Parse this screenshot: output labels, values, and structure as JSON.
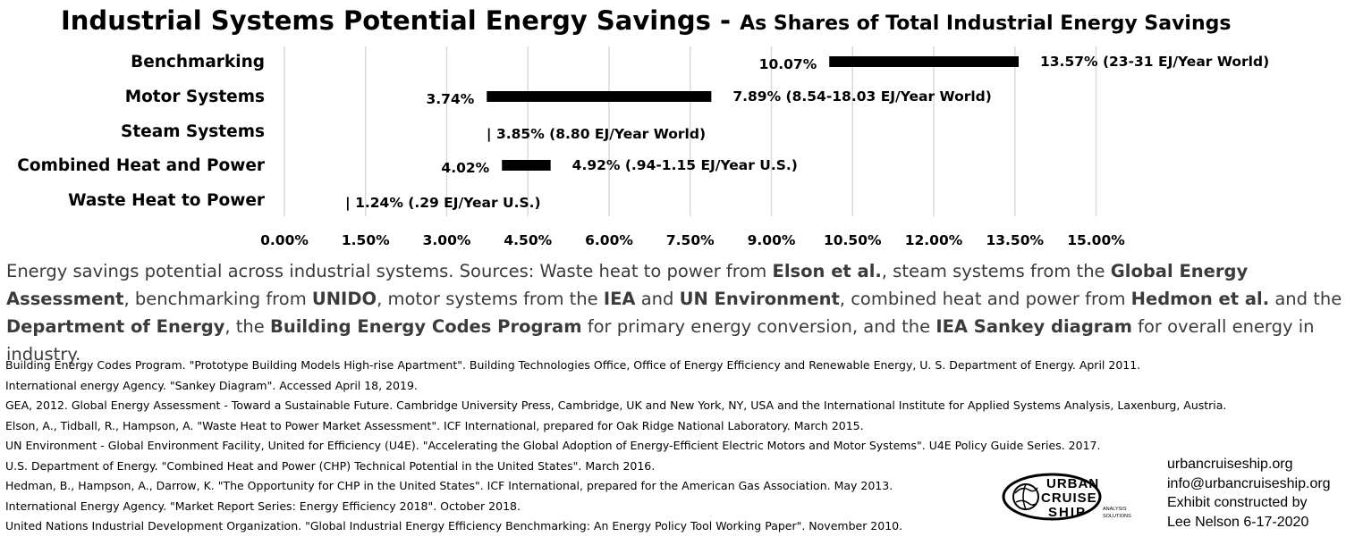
{
  "chart_data": {
    "type": "bar",
    "title": "Industrial Systems Potential Energy Savings -",
    "subtitle": "As Shares of Total Industrial Energy Savings",
    "xlim": [
      0,
      15
    ],
    "x_ticks": [
      "0.00%",
      "1.50%",
      "3.00%",
      "4.50%",
      "6.00%",
      "7.50%",
      "9.00%",
      "10.50%",
      "12.00%",
      "13.50%",
      "15.00%"
    ],
    "x_tick_values": [
      0,
      1.5,
      3,
      4.5,
      6,
      7.5,
      9,
      10.5,
      12,
      13.5,
      15
    ],
    "grid": "vertical",
    "series": [
      {
        "category": "Benchmarking",
        "low": 10.07,
        "high": 13.57,
        "low_label": "10.07%",
        "high_label": "13.57% (23-31 EJ/Year World)"
      },
      {
        "category": "Motor Systems",
        "low": 3.74,
        "high": 7.89,
        "low_label": "3.74%",
        "high_label": "7.89% (8.54-18.03 EJ/Year World)"
      },
      {
        "category": "Steam Systems",
        "low": 3.85,
        "high": 3.85,
        "low_label": "",
        "high_label": "| 3.85% (8.80 EJ/Year World)"
      },
      {
        "category": "Combined Heat and Power",
        "low": 4.02,
        "high": 4.92,
        "low_label": "4.02%",
        "high_label": "4.92% (.94-1.15 EJ/Year U.S.)"
      },
      {
        "category": "Waste Heat to Power",
        "low": 1.24,
        "high": 1.24,
        "low_label": "",
        "high_label": "| 1.24% (.29 EJ/Year U.S.)"
      }
    ]
  },
  "caption": {
    "segments": [
      {
        "text": "Energy savings potential across industrial systems. Sources: Waste heat to power from ",
        "bold": false
      },
      {
        "text": "Elson et al.",
        "bold": true
      },
      {
        "text": ", steam systems from the ",
        "bold": false
      },
      {
        "text": "Global Energy Assessment",
        "bold": true
      },
      {
        "text": ", benchmarking from ",
        "bold": false
      },
      {
        "text": "UNIDO",
        "bold": true
      },
      {
        "text": ", motor systems from the ",
        "bold": false
      },
      {
        "text": "IEA",
        "bold": true
      },
      {
        "text": " and ",
        "bold": false
      },
      {
        "text": "UN Environment",
        "bold": true
      },
      {
        "text": ", combined heat and power from ",
        "bold": false
      },
      {
        "text": "Hedmon et al.",
        "bold": true
      },
      {
        "text": " and the ",
        "bold": false
      },
      {
        "text": "Department of Energy",
        "bold": true
      },
      {
        "text": ", the ",
        "bold": false
      },
      {
        "text": "Building Energy Codes Program",
        "bold": true
      },
      {
        "text": " for primary energy conversion, and the ",
        "bold": false
      },
      {
        "text": "IEA Sankey diagram",
        "bold": true
      },
      {
        "text": " for overall energy in industry.",
        "bold": false
      }
    ]
  },
  "references": [
    "Building Energy Codes Program. \"Prototype Building Models High-rise Apartment\". Building Technologies Office, Office of Energy Efficiency and Renewable Energy, U. S. Department of Energy. April 2011.",
    "International energy Agency. \"Sankey Diagram\". Accessed April 18, 2019.",
    "GEA, 2012. Global Energy Assessment - Toward a Sustainable Future. Cambridge University Press, Cambridge, UK and New York, NY, USA and the International Institute for Applied Systems Analysis, Laxenburg, Austria.",
    "Elson, A., Tidball, R., Hampson, A. \"Waste Heat to Power Market Assessment\". ICF International, prepared for Oak Ridge National Laboratory. March 2015.",
    "UN Environment - Global Environment Facility, United for Efficiency (U4E). \"Accelerating the Global Adoption of Energy-Efficient Electric Motors and Motor Systems\". U4E Policy Guide Series. 2017.",
    "U.S. Department of Energy. \"Combined Heat and Power (CHP) Technical Potential in the United States\". March 2016.",
    "Hedman, B., Hampson, A., Darrow, K. \"The Opportunity for CHP in the United States\". ICF International, prepared for the American Gas Association. May 2013.",
    "International Energy Agency. \"Market Report Series: Energy Efficiency 2018\". October 2018.",
    "United Nations Industrial Development Organization. \"Global Industrial Energy Efficiency Benchmarking: An Energy Policy Tool Working Paper\". November 2010."
  ],
  "logo": {
    "line1": "URBAN",
    "line2": "CRUISE",
    "line3": "SHIP",
    "tagline1": "ANALYSIS",
    "tagline2": "SOLUTIONS"
  },
  "credits": {
    "website": "urbancruiseship.org",
    "email": "info@urbancruiseship.org",
    "line3": "Exhibit constructed by",
    "line4": "Lee Nelson 6-17-2020"
  },
  "colors": {
    "bar": "#000000",
    "grid": "#d9d9d9",
    "caption_text": "#3b3b3b"
  }
}
